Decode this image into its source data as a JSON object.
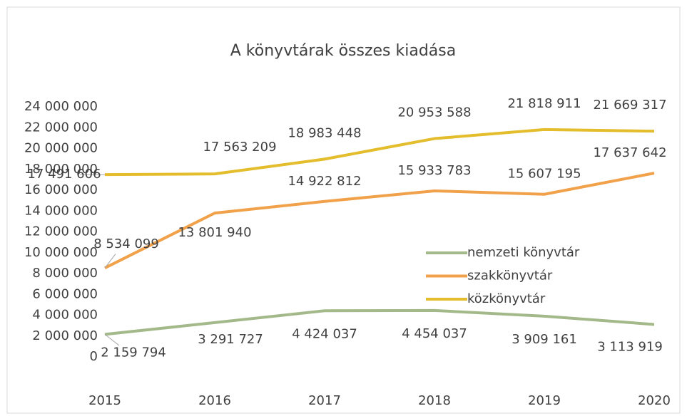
{
  "chart_data": {
    "type": "line",
    "title": "A könyvtárak összes kiadása",
    "categories": [
      "2015",
      "2016",
      "2017",
      "2018",
      "2019",
      "2020"
    ],
    "series": [
      {
        "name": "nemzeti könyvtár",
        "color": "#a3b98a",
        "values": [
          2159794,
          3291727,
          4424037,
          4454037,
          3909161,
          3113919
        ],
        "value_labels": [
          "2 159 794",
          "3 291 727",
          "4 424 037",
          "4 454 037",
          "3 909 161",
          "3 113 919"
        ]
      },
      {
        "name": "szakkönyvtár",
        "color": "#f0a14a",
        "values": [
          8534099,
          13801940,
          14922812,
          15933783,
          15607195,
          17637642
        ],
        "value_labels": [
          "8 534 099",
          "13 801 940",
          "14 922 812",
          "15 933 783",
          "15 607 195",
          "17 637 642"
        ]
      },
      {
        "name": "közkönyvtár",
        "color": "#e3bd2c",
        "values": [
          17491606,
          17563209,
          18983448,
          20953588,
          21818911,
          21669317
        ],
        "value_labels": [
          "17 491 606",
          "17 563 209",
          "18 983 448",
          "20 953 588",
          "21 818 911",
          "21 669 317"
        ]
      }
    ],
    "ylim": [
      0,
      24000000
    ],
    "yticks": [
      0,
      {
        "value": 2000000,
        "label": "2 000 000"
      },
      {
        "value": 4000000,
        "label": "4 000 000"
      },
      {
        "value": 6000000,
        "label": "6 000 000"
      },
      {
        "value": 8000000,
        "label": "8 000 000"
      },
      {
        "value": 10000000,
        "label": "10 000 000"
      },
      {
        "value": 12000000,
        "label": "12 000 000"
      },
      {
        "value": 14000000,
        "label": "14 000 000"
      },
      {
        "value": 16000000,
        "label": "16 000 000"
      },
      {
        "value": 18000000,
        "label": "18 000 000"
      },
      {
        "value": 20000000,
        "label": "20 000 000"
      },
      {
        "value": 22000000,
        "label": "22 000 000"
      },
      {
        "value": 24000000,
        "label": "24 000 000"
      }
    ],
    "grid": false,
    "legend": "right"
  }
}
